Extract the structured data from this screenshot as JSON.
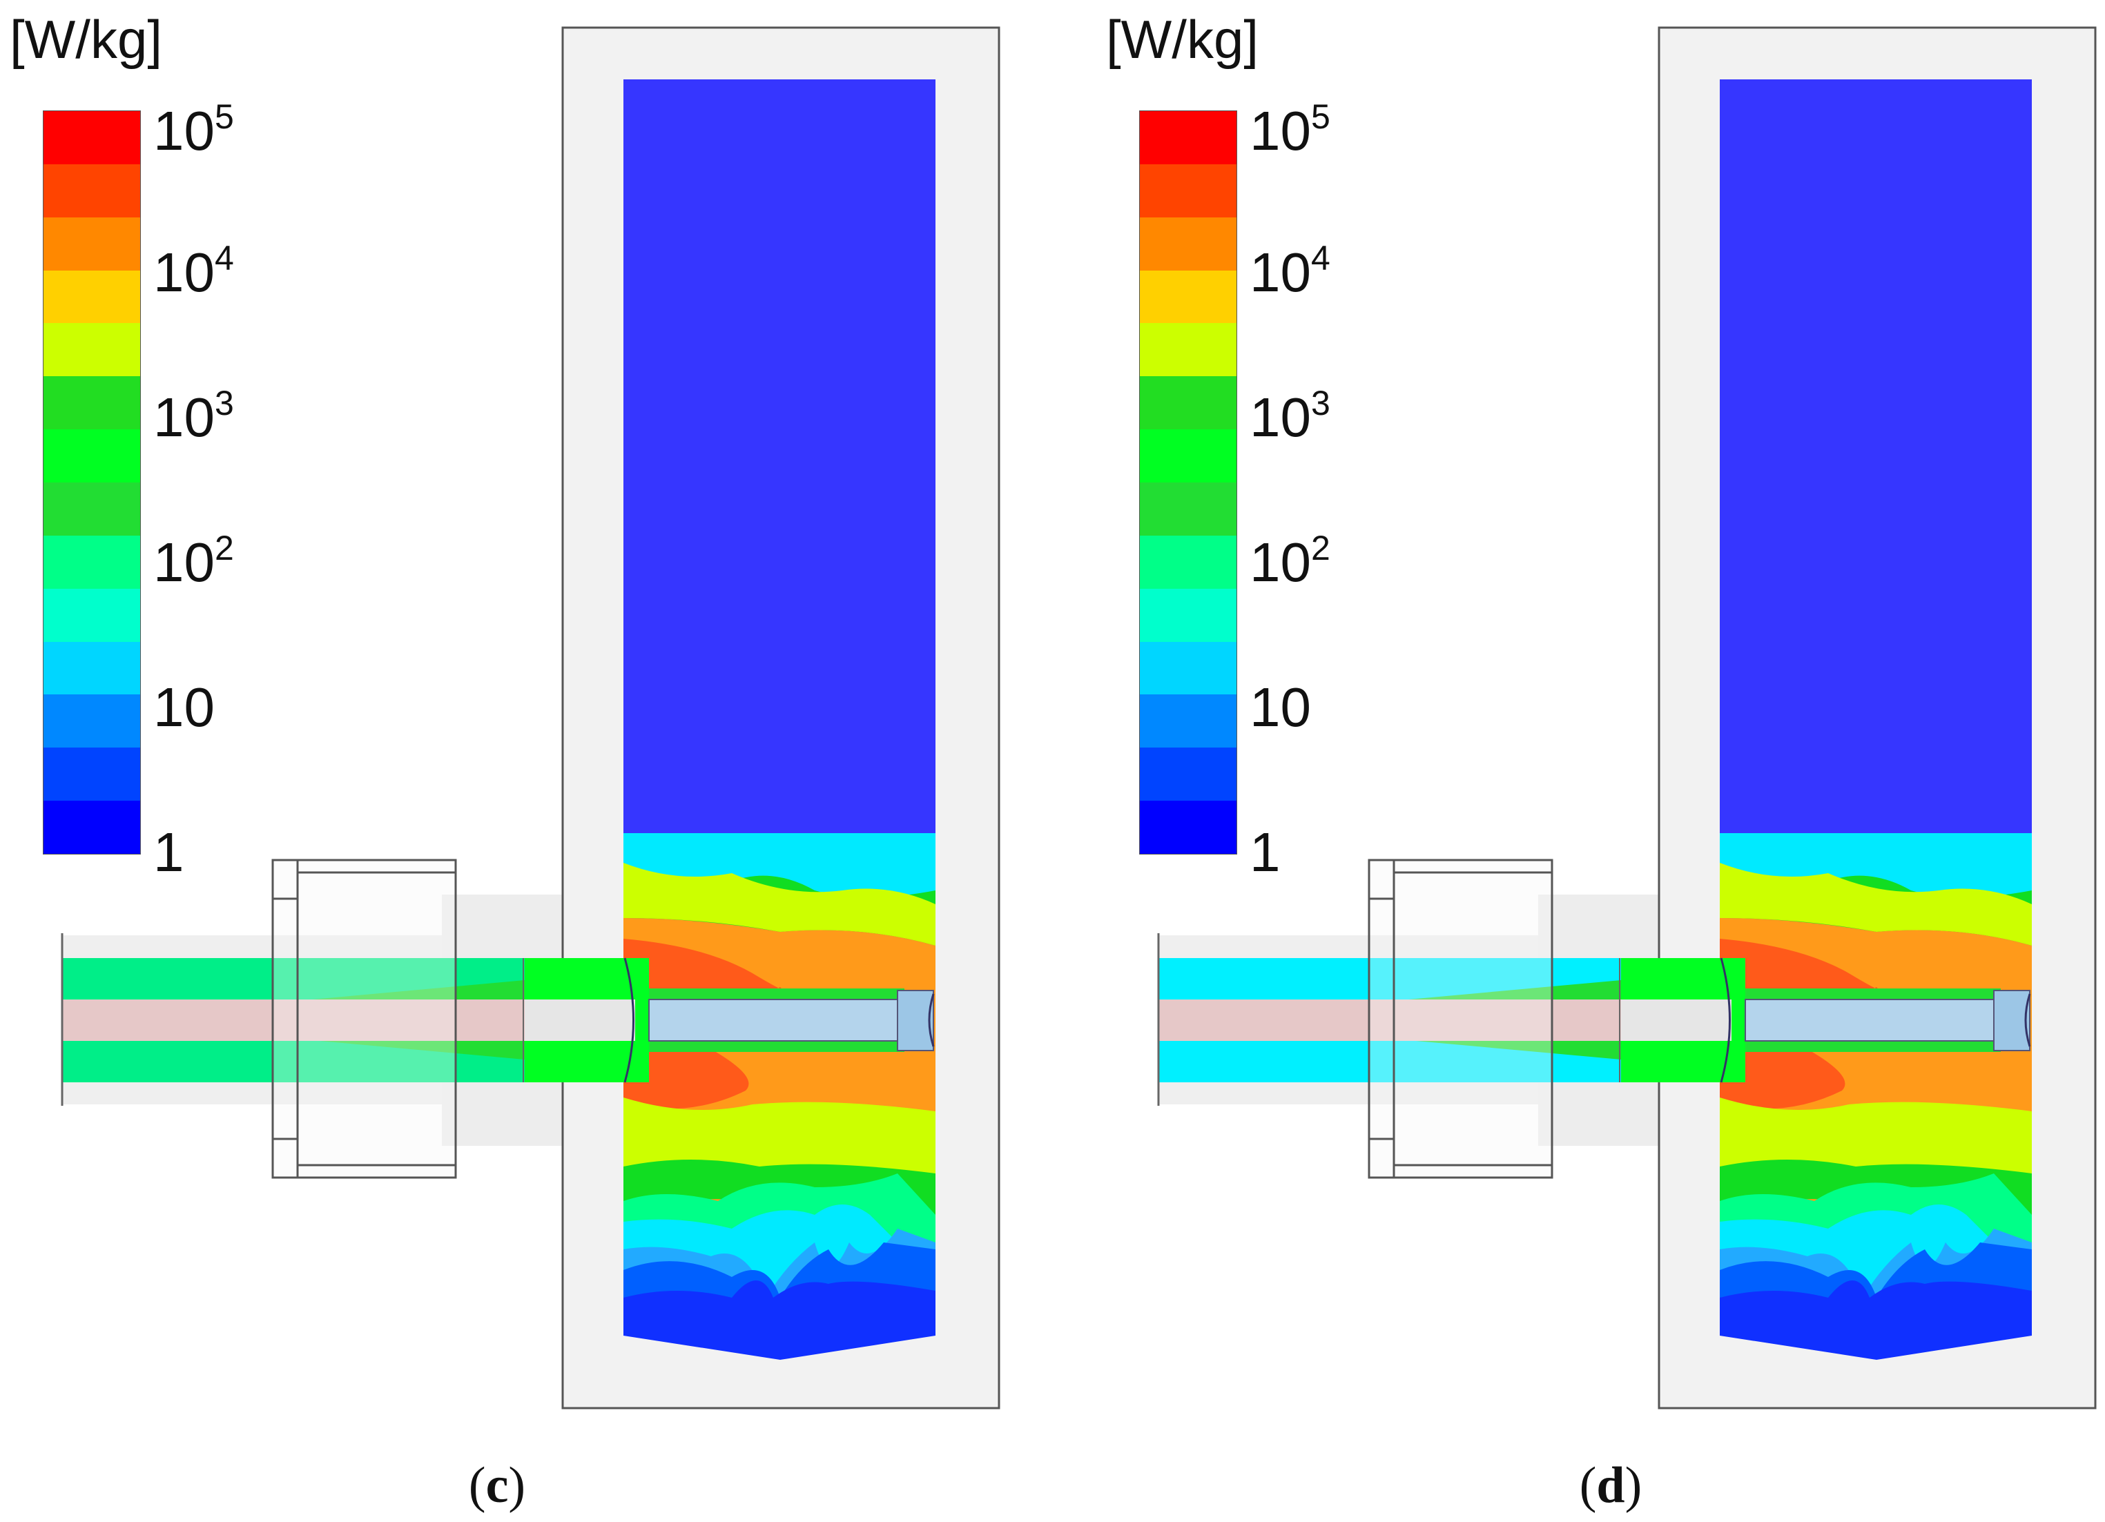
{
  "colorbar": {
    "unit_label": "[W/kg]",
    "scale": "log",
    "range": [
      1,
      100000
    ],
    "colors": [
      "#ff0000",
      "#ff4400",
      "#ff8800",
      "#ffd000",
      "#ccff00",
      "#22dd22",
      "#00ff22",
      "#22dd33",
      "#00ff88",
      "#00ffcc",
      "#00d6ff",
      "#0088ff",
      "#0044ff",
      "#0000ff"
    ],
    "ticks": [
      {
        "base": "10",
        "exp": "5"
      },
      {
        "base": "10",
        "exp": "4"
      },
      {
        "base": "10",
        "exp": "3"
      },
      {
        "base": "10",
        "exp": "2"
      },
      {
        "base": "10",
        "exp": ""
      },
      {
        "base": "1",
        "exp": ""
      }
    ]
  },
  "panels": [
    {
      "label_open": "(",
      "label_letter": "c",
      "label_close": ")",
      "probe_color": "#00ee88",
      "disk_color": "#00ff22"
    },
    {
      "label_open": "(",
      "label_letter": "d",
      "label_close": ")",
      "probe_color": "#00f0ff",
      "disk_color": "#00ff22"
    }
  ],
  "field_colors": {
    "tissue_top": "#3636ff",
    "red": "#ff5a1a",
    "orange": "#ff9a1a",
    "yellow": "#ccff00",
    "green": "#11dd22",
    "cyan": "#00eaff",
    "blue": "#1030ff",
    "housing": "#f2f2f2",
    "probe_core": "#e6c8c8",
    "needle": "#b4d4ec"
  }
}
